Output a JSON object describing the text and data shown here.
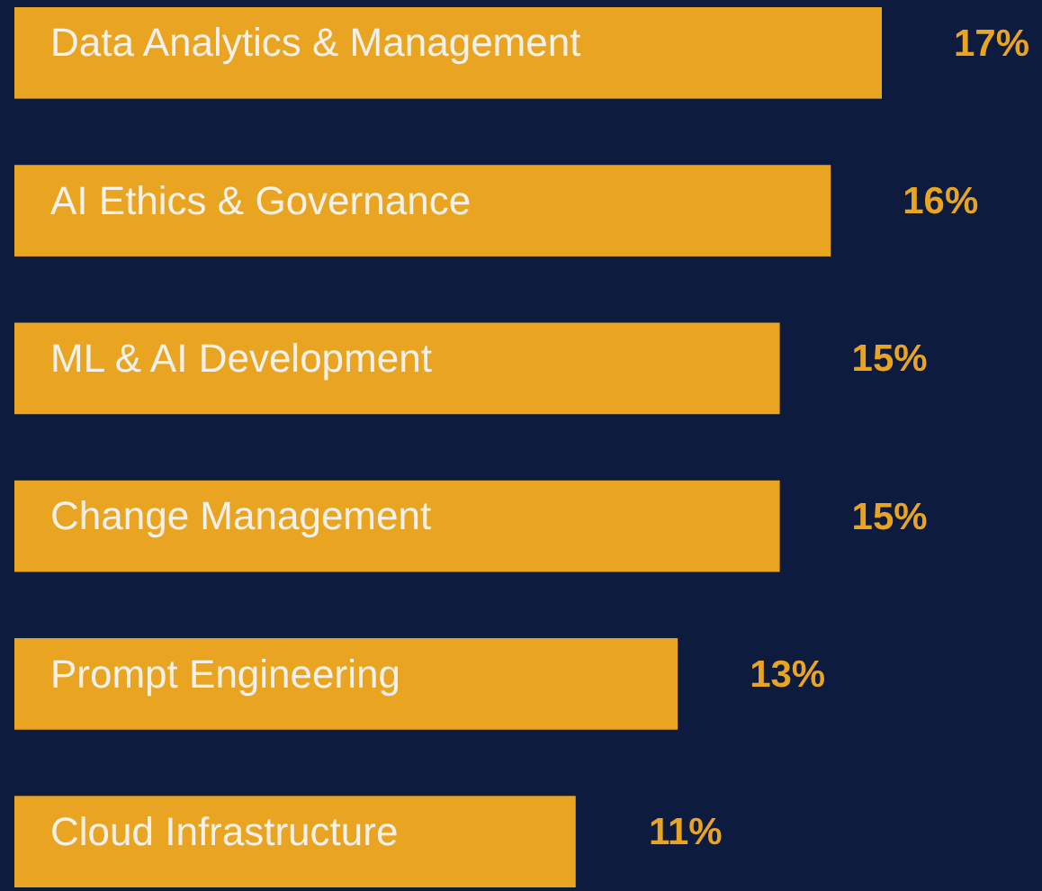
{
  "chart_data": {
    "type": "bar",
    "orientation": "horizontal",
    "categories": [
      "Data Analytics & Management",
      "AI Ethics & Governance",
      "ML & AI Development",
      "Change Management",
      "Prompt Engineering",
      "Cloud Infrastructure"
    ],
    "values": [
      17,
      16,
      15,
      15,
      13,
      11
    ],
    "value_labels": [
      "17%",
      "16%",
      "15%",
      "15%",
      "13%",
      "11%"
    ],
    "color": "#e9a422",
    "xlim": [
      0,
      17
    ]
  }
}
